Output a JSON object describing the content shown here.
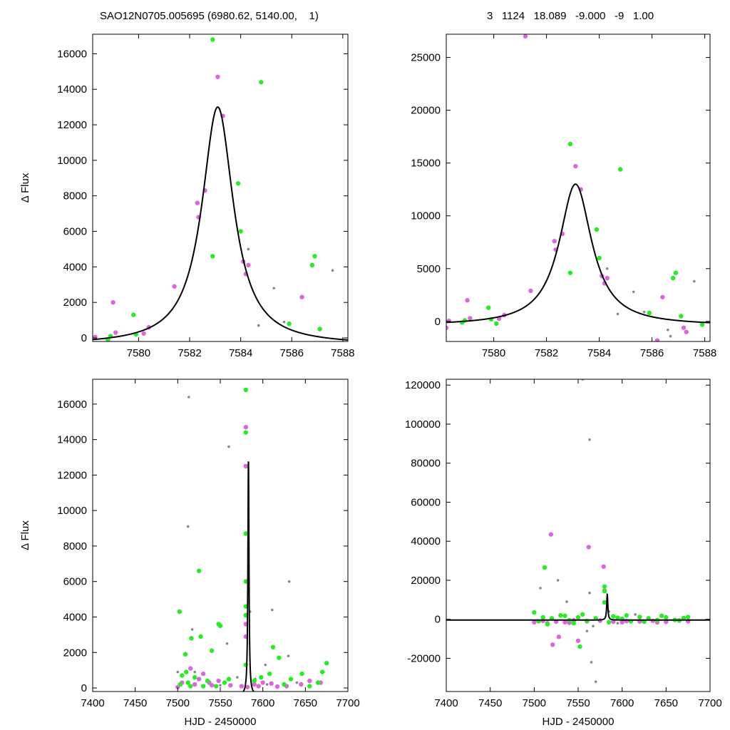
{
  "header": {
    "left": "SAO12N0705.005695 (6980.62, 5140.00,    1)",
    "right": "3   1124   18.089   -9.000   -9   1.00"
  },
  "colors": {
    "green": "#22ee22",
    "magenta": "#dd66dd",
    "gray": "#888888",
    "curve": "#000000"
  },
  "chart_data": [
    {
      "type": "scatter",
      "ylabel": "Δ Flux",
      "xlabel": "",
      "xlim": [
        7578.2,
        7588.2
      ],
      "ylim": [
        -200,
        17100
      ],
      "xticks": [
        "7580",
        "7582",
        "7584",
        "7586",
        "7588"
      ],
      "yticks": [
        "0",
        "2000",
        "4000",
        "6000",
        "8000",
        "10000",
        "12000",
        "14000",
        "16000"
      ],
      "model": {
        "amp": 13400,
        "center": 7583.1,
        "width": 0.75,
        "offset": -400
      },
      "green": [
        [
          7578.8,
          -100
        ],
        [
          7578.9,
          100
        ],
        [
          7579.8,
          1300
        ],
        [
          7579.9,
          200
        ],
        [
          7582.9,
          16800
        ],
        [
          7582.9,
          4600
        ],
        [
          7583.9,
          8700
        ],
        [
          7584.0,
          6000
        ],
        [
          7584.8,
          14400
        ],
        [
          7585.9,
          800
        ],
        [
          7586.8,
          4100
        ],
        [
          7586.9,
          4600
        ],
        [
          7587.1,
          500
        ]
      ],
      "magenta": [
        [
          7578.3,
          50
        ],
        [
          7579.0,
          2000
        ],
        [
          7579.1,
          300
        ],
        [
          7580.2,
          250
        ],
        [
          7580.4,
          600
        ],
        [
          7581.4,
          2900
        ],
        [
          7582.3,
          7600
        ],
        [
          7582.35,
          6800
        ],
        [
          7582.6,
          8300
        ],
        [
          7583.1,
          14700
        ],
        [
          7583.3,
          12500
        ],
        [
          7584.1,
          4300
        ],
        [
          7584.2,
          3600
        ],
        [
          7584.3,
          4100
        ],
        [
          7586.4,
          2300
        ]
      ],
      "gray": [
        [
          7584.3,
          5000
        ],
        [
          7584.7,
          700
        ],
        [
          7585.3,
          2800
        ],
        [
          7585.7,
          900
        ],
        [
          7587.6,
          3800
        ]
      ]
    },
    {
      "type": "scatter",
      "ylabel": "",
      "xlabel": "",
      "xlim": [
        7578.2,
        7588.2
      ],
      "ylim": [
        -1900,
        27200
      ],
      "xticks": [
        "7580",
        "7582",
        "7584",
        "7586",
        "7588"
      ],
      "yticks": [
        "0",
        "5000",
        "10000",
        "15000",
        "20000",
        "25000"
      ],
      "model": {
        "amp": 13400,
        "center": 7583.1,
        "width": 0.75,
        "offset": -400
      },
      "green": [
        [
          7578.8,
          -100
        ],
        [
          7578.9,
          100
        ],
        [
          7579.8,
          1300
        ],
        [
          7579.9,
          200
        ],
        [
          7580.1,
          -200
        ],
        [
          7582.9,
          16800
        ],
        [
          7582.9,
          4600
        ],
        [
          7583.9,
          8700
        ],
        [
          7584.0,
          6000
        ],
        [
          7584.8,
          14400
        ],
        [
          7585.9,
          800
        ],
        [
          7586.8,
          4100
        ],
        [
          7586.9,
          4600
        ],
        [
          7587.1,
          500
        ],
        [
          7587.9,
          -300
        ]
      ],
      "magenta": [
        [
          7578.2,
          -600
        ],
        [
          7578.3,
          50
        ],
        [
          7579.0,
          2000
        ],
        [
          7579.1,
          300
        ],
        [
          7580.2,
          250
        ],
        [
          7580.4,
          600
        ],
        [
          7581.2,
          27000
        ],
        [
          7581.4,
          2900
        ],
        [
          7582.3,
          7600
        ],
        [
          7582.35,
          6800
        ],
        [
          7582.6,
          8300
        ],
        [
          7583.1,
          14700
        ],
        [
          7583.3,
          12500
        ],
        [
          7584.1,
          4300
        ],
        [
          7584.2,
          3600
        ],
        [
          7584.3,
          4100
        ],
        [
          7586.2,
          -1800
        ],
        [
          7586.4,
          2300
        ],
        [
          7587.2,
          -600
        ],
        [
          7587.3,
          -1000
        ]
      ],
      "gray": [
        [
          7584.3,
          5000
        ],
        [
          7584.7,
          700
        ],
        [
          7585.3,
          2800
        ],
        [
          7585.7,
          900
        ],
        [
          7586.6,
          -800
        ],
        [
          7586.7,
          -1400
        ],
        [
          7587.6,
          3800
        ]
      ]
    },
    {
      "type": "scatter",
      "ylabel": "Δ Flux",
      "xlabel": "HJD - 2450000",
      "xlim": [
        7400,
        7700
      ],
      "ylim": [
        -200,
        17400
      ],
      "xticks": [
        "7400",
        "7450",
        "7500",
        "7550",
        "7600",
        "7650",
        "7700"
      ],
      "yticks": [
        "0",
        "2000",
        "4000",
        "6000",
        "8000",
        "10000",
        "12000",
        "14000",
        "16000"
      ],
      "model": {
        "amp": 13400,
        "center": 7583.1,
        "width": 0.75,
        "offset": -400
      },
      "green": [
        [
          7580,
          16800
        ],
        [
          7580,
          14400
        ],
        [
          7580,
          8700
        ],
        [
          7580,
          6000
        ],
        [
          7580,
          4600
        ],
        [
          7580,
          4100
        ],
        [
          7580,
          1300
        ],
        [
          7525,
          6600
        ],
        [
          7502,
          4300
        ],
        [
          7548,
          3600
        ],
        [
          7550,
          3500
        ],
        [
          7516,
          2800
        ],
        [
          7527,
          2900
        ],
        [
          7540,
          2100
        ],
        [
          7509,
          1900
        ],
        [
          7612,
          2300
        ],
        [
          7619,
          1700
        ],
        [
          7675,
          1400
        ],
        [
          7505,
          700
        ],
        [
          7512,
          300
        ],
        [
          7515,
          100
        ],
        [
          7535,
          400
        ],
        [
          7560,
          500
        ],
        [
          7598,
          600
        ],
        [
          7625,
          200
        ],
        [
          7646,
          800
        ],
        [
          7665,
          300
        ],
        [
          7520,
          600
        ],
        [
          7545,
          100
        ],
        [
          7590,
          400
        ],
        [
          7608,
          800
        ],
        [
          7633,
          500
        ],
        [
          7655,
          100
        ],
        [
          7670,
          900
        ],
        [
          7503,
          200
        ],
        [
          7510,
          900
        ],
        [
          7530,
          100
        ],
        [
          7555,
          300
        ]
      ],
      "magenta": [
        [
          7580,
          14700
        ],
        [
          7580,
          12500
        ],
        [
          7580,
          3600
        ],
        [
          7580,
          2900
        ],
        [
          7515,
          1100
        ],
        [
          7530,
          800
        ],
        [
          7505,
          300
        ],
        [
          7520,
          200
        ],
        [
          7548,
          400
        ],
        [
          7562,
          150
        ],
        [
          7582,
          50
        ],
        [
          7595,
          100
        ],
        [
          7610,
          250
        ],
        [
          7628,
          100
        ],
        [
          7645,
          200
        ],
        [
          7668,
          300
        ],
        [
          7540,
          150
        ],
        [
          7525,
          500
        ],
        [
          7500,
          50
        ],
        [
          7590,
          200
        ],
        [
          7655,
          400
        ],
        [
          7617,
          80
        ],
        [
          7537,
          300
        ],
        [
          7575,
          100
        ],
        [
          7600,
          300
        ]
      ],
      "gray": [
        [
          7513,
          16400
        ],
        [
          7560,
          13600
        ],
        [
          7512,
          9100
        ],
        [
          7631,
          6000
        ],
        [
          7611,
          4400
        ],
        [
          7585,
          4300
        ],
        [
          7517,
          3300
        ],
        [
          7558,
          2500
        ],
        [
          7630,
          1800
        ],
        [
          7603,
          1300
        ],
        [
          7520,
          900
        ],
        [
          7570,
          600
        ],
        [
          7591,
          500
        ],
        [
          7640,
          300
        ],
        [
          7605,
          200
        ],
        [
          7550,
          150
        ],
        [
          7500,
          900
        ]
      ]
    },
    {
      "type": "scatter",
      "ylabel": "",
      "xlabel": "HJD - 2450000",
      "xlim": [
        7400,
        7700
      ],
      "ylim": [
        -37000,
        123000
      ],
      "xticks": [
        "7400",
        "7450",
        "7500",
        "7550",
        "7600",
        "7650",
        "7700"
      ],
      "yticks": [
        "-20000",
        "0",
        "20000",
        "40000",
        "60000",
        "80000",
        "100000",
        "120000"
      ],
      "model": {
        "amp": 13400,
        "center": 7583.1,
        "width": 0.75,
        "offset": -400
      },
      "green": [
        [
          7512,
          26500
        ],
        [
          7580,
          16800
        ],
        [
          7580,
          14400
        ],
        [
          7580,
          8700
        ],
        [
          7552,
          -14000
        ],
        [
          7505,
          -1000
        ],
        [
          7510,
          1000
        ],
        [
          7520,
          500
        ],
        [
          7530,
          2000
        ],
        [
          7540,
          -500
        ],
        [
          7550,
          1000
        ],
        [
          7560,
          -800
        ],
        [
          7570,
          500
        ],
        [
          7590,
          1500
        ],
        [
          7600,
          300
        ],
        [
          7610,
          -1000
        ],
        [
          7620,
          1200
        ],
        [
          7630,
          500
        ],
        [
          7640,
          -400
        ],
        [
          7650,
          1000
        ],
        [
          7660,
          -300
        ],
        [
          7670,
          600
        ],
        [
          7675,
          1200
        ],
        [
          7500,
          3500
        ],
        [
          7515,
          -2500
        ],
        [
          7535,
          1800
        ],
        [
          7545,
          -2000
        ],
        [
          7555,
          2500
        ],
        [
          7585,
          -1500
        ],
        [
          7595,
          800
        ],
        [
          7605,
          2000
        ],
        [
          7625,
          -1200
        ],
        [
          7645,
          1800
        ],
        [
          7665,
          -600
        ]
      ],
      "magenta": [
        [
          7519,
          43500
        ],
        [
          7562,
          37000
        ],
        [
          7579,
          27000
        ],
        [
          7580,
          14700
        ],
        [
          7521,
          -13000
        ],
        [
          7528,
          -9000
        ],
        [
          7550,
          -11000
        ],
        [
          7500,
          -1500
        ],
        [
          7510,
          -800
        ],
        [
          7525,
          -1200
        ],
        [
          7535,
          -1500
        ],
        [
          7545,
          -500
        ],
        [
          7560,
          -1000
        ],
        [
          7575,
          -700
        ],
        [
          7590,
          -1200
        ],
        [
          7605,
          -900
        ],
        [
          7620,
          -1100
        ],
        [
          7635,
          -800
        ],
        [
          7650,
          -1300
        ],
        [
          7665,
          -600
        ],
        [
          7675,
          -1000
        ],
        [
          7515,
          -2000
        ],
        [
          7540,
          -1800
        ],
        [
          7600,
          -1500
        ],
        [
          7640,
          -1600
        ]
      ],
      "gray": [
        [
          7555,
          123000
        ],
        [
          7563,
          92000
        ],
        [
          7527,
          20000
        ],
        [
          7507,
          16000
        ],
        [
          7563,
          13500
        ],
        [
          7567,
          -3500
        ],
        [
          7565,
          -22000
        ],
        [
          7570,
          -32000
        ],
        [
          7537,
          9000
        ],
        [
          7585,
          4000
        ],
        [
          7615,
          2500
        ],
        [
          7645,
          1500
        ],
        [
          7560,
          -6000
        ],
        [
          7595,
          -2000
        ],
        [
          7626,
          -1500
        ]
      ]
    }
  ]
}
